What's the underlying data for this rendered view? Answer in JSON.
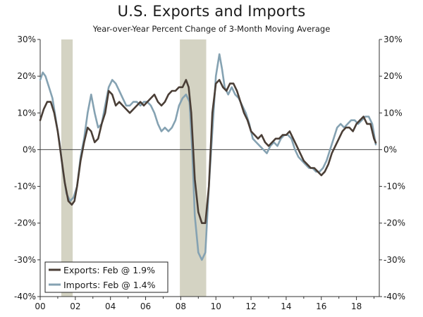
{
  "chart_data": {
    "type": "line",
    "title": "U.S. Exports and Imports",
    "subtitle": "Year-over-Year Percent Change of 3-Month Moving Average",
    "xlabel": "",
    "ylabel": "",
    "xlim": [
      2000,
      2019.3
    ],
    "ylim": [
      -40,
      30
    ],
    "x_tick_values": [
      2000,
      2002,
      2004,
      2006,
      2008,
      2010,
      2012,
      2014,
      2016,
      2018
    ],
    "x_tick_labels": [
      "00",
      "02",
      "04",
      "06",
      "08",
      "10",
      "12",
      "14",
      "16",
      "18"
    ],
    "y_tick_values": [
      30,
      20,
      10,
      0,
      -10,
      -20,
      -30,
      -40
    ],
    "y_tick_labels": [
      "30%",
      "20%",
      "10%",
      "0%",
      "-10%",
      "-20%",
      "-30%",
      "-40%"
    ],
    "recessions": [
      [
        2001.2,
        2001.85
      ],
      [
        2007.95,
        2009.45
      ]
    ],
    "legend_position": "bottom-left",
    "colors": {
      "exports": "#4a3e36",
      "imports": "#85a2b2",
      "recession": "#d4d3c3",
      "axis": "#333333"
    },
    "series": [
      {
        "name": "Exports: Feb @ 1.9%",
        "key": "exports",
        "x": [
          2000.0,
          2000.2,
          2000.4,
          2000.6,
          2000.8,
          2001.0,
          2001.2,
          2001.4,
          2001.6,
          2001.8,
          2001.95,
          2002.1,
          2002.3,
          2002.5,
          2002.7,
          2002.9,
          2003.1,
          2003.3,
          2003.5,
          2003.7,
          2003.9,
          2004.1,
          2004.3,
          2004.5,
          2004.7,
          2004.9,
          2005.1,
          2005.3,
          2005.5,
          2005.7,
          2005.9,
          2006.1,
          2006.3,
          2006.5,
          2006.7,
          2006.9,
          2007.1,
          2007.3,
          2007.5,
          2007.7,
          2007.9,
          2008.1,
          2008.3,
          2008.45,
          2008.6,
          2008.8,
          2009.0,
          2009.2,
          2009.4,
          2009.6,
          2009.8,
          2010.0,
          2010.2,
          2010.4,
          2010.6,
          2010.8,
          2011.0,
          2011.2,
          2011.4,
          2011.6,
          2011.8,
          2012.0,
          2012.2,
          2012.4,
          2012.6,
          2012.8,
          2013.0,
          2013.2,
          2013.4,
          2013.6,
          2013.8,
          2014.0,
          2014.2,
          2014.4,
          2014.6,
          2014.8,
          2015.0,
          2015.2,
          2015.4,
          2015.6,
          2015.8,
          2016.0,
          2016.2,
          2016.4,
          2016.6,
          2016.8,
          2017.0,
          2017.2,
          2017.4,
          2017.6,
          2017.8,
          2018.0,
          2018.2,
          2018.4,
          2018.6,
          2018.8,
          2019.0,
          2019.1
        ],
        "values": [
          8,
          11,
          13,
          13,
          10,
          5,
          -2,
          -9,
          -14,
          -15,
          -14,
          -10,
          -3,
          2,
          6,
          5,
          2,
          3,
          7,
          10,
          16,
          15,
          12,
          13,
          12,
          11,
          10,
          11,
          12,
          13,
          12,
          13,
          14,
          15,
          13,
          12,
          13,
          15,
          16,
          16,
          17,
          17,
          19,
          17,
          10,
          -8,
          -17,
          -20,
          -20,
          -10,
          10,
          18,
          19,
          17,
          16,
          18,
          18,
          16,
          13,
          10,
          8,
          5,
          4,
          3,
          4,
          2,
          1,
          2,
          3,
          3,
          4,
          4,
          5,
          3,
          1,
          -1,
          -3,
          -4,
          -5,
          -5,
          -6,
          -7,
          -6,
          -4,
          -1,
          1,
          3,
          5,
          6,
          6,
          5,
          7,
          8,
          9,
          7,
          7,
          3,
          1.9
        ]
      },
      {
        "name": "Imports: Feb @ 1.4%",
        "key": "imports",
        "x": [
          2000.0,
          2000.15,
          2000.3,
          2000.5,
          2000.7,
          2000.9,
          2001.1,
          2001.3,
          2001.5,
          2001.7,
          2001.9,
          2002.1,
          2002.3,
          2002.5,
          2002.7,
          2002.9,
          2003.1,
          2003.3,
          2003.5,
          2003.7,
          2003.9,
          2004.1,
          2004.3,
          2004.5,
          2004.7,
          2004.9,
          2005.1,
          2005.3,
          2005.5,
          2005.7,
          2005.9,
          2006.1,
          2006.3,
          2006.5,
          2006.7,
          2006.9,
          2007.1,
          2007.3,
          2007.5,
          2007.7,
          2007.9,
          2008.1,
          2008.3,
          2008.5,
          2008.65,
          2008.8,
          2009.0,
          2009.2,
          2009.4,
          2009.6,
          2009.8,
          2010.0,
          2010.2,
          2010.35,
          2010.5,
          2010.7,
          2010.9,
          2011.1,
          2011.3,
          2011.5,
          2011.7,
          2011.9,
          2012.1,
          2012.3,
          2012.5,
          2012.7,
          2012.9,
          2013.1,
          2013.3,
          2013.5,
          2013.7,
          2013.9,
          2014.1,
          2014.3,
          2014.5,
          2014.7,
          2014.9,
          2015.1,
          2015.3,
          2015.5,
          2015.7,
          2015.9,
          2016.1,
          2016.3,
          2016.5,
          2016.7,
          2016.9,
          2017.1,
          2017.3,
          2017.5,
          2017.7,
          2017.9,
          2018.1,
          2018.3,
          2018.5,
          2018.7,
          2018.9,
          2019.1
        ],
        "values": [
          19,
          21,
          20,
          17,
          14,
          8,
          2,
          -6,
          -12,
          -14,
          -13,
          -10,
          -2,
          3,
          10,
          15,
          10,
          6,
          7,
          12,
          17,
          19,
          18,
          16,
          14,
          12,
          12,
          13,
          13,
          12,
          13,
          13,
          12,
          10,
          7,
          5,
          6,
          5,
          6,
          8,
          12,
          14,
          15,
          13,
          0,
          -18,
          -28,
          -30,
          -28,
          -10,
          5,
          20,
          26,
          22,
          17,
          15,
          17,
          15,
          14,
          12,
          10,
          7,
          3,
          2,
          1,
          0,
          -1,
          1,
          2,
          1,
          3,
          4,
          4,
          3,
          0,
          -2,
          -3,
          -4,
          -5,
          -5,
          -6,
          -6,
          -5,
          -3,
          0,
          3,
          6,
          7,
          6,
          7,
          8,
          8,
          7,
          8,
          9,
          9,
          7,
          1.4
        ]
      }
    ]
  }
}
